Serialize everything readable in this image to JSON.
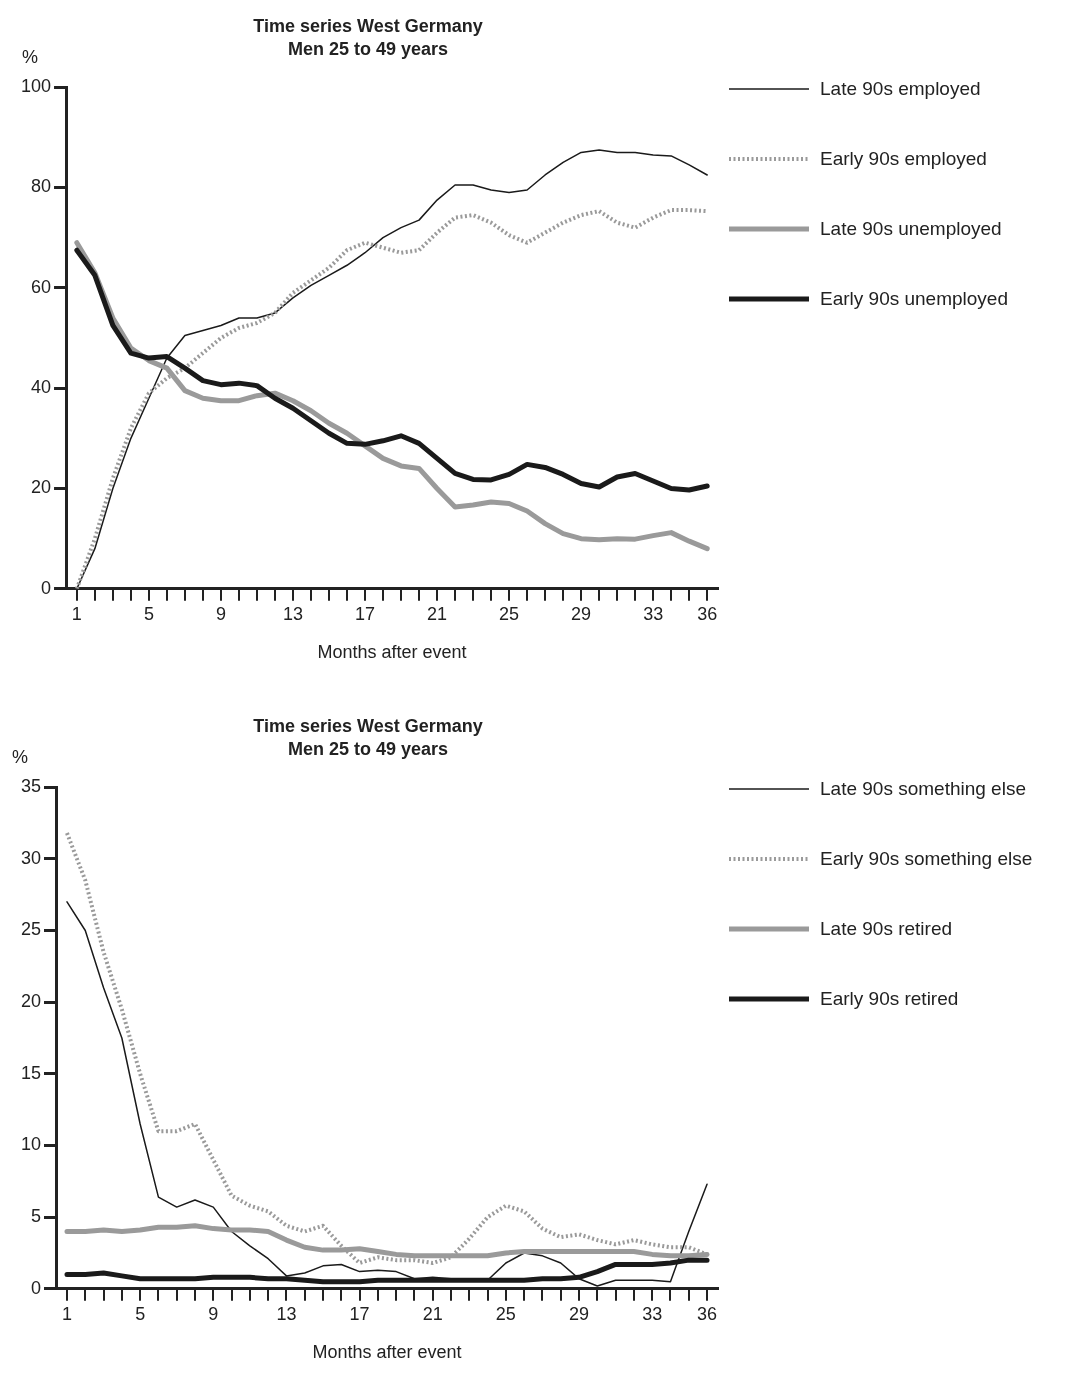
{
  "chart_data": [
    {
      "type": "line",
      "title": "Time series West Germany",
      "subtitle": "Men 25 to 49 years",
      "xlabel": "Months after event",
      "ylabel": "%",
      "legend": "right",
      "grid": false,
      "marker": "none",
      "x": [
        1,
        2,
        3,
        4,
        5,
        6,
        7,
        8,
        9,
        10,
        11,
        12,
        13,
        14,
        15,
        16,
        17,
        18,
        19,
        20,
        21,
        22,
        23,
        24,
        25,
        26,
        27,
        28,
        29,
        30,
        31,
        32,
        33,
        34,
        35,
        36
      ],
      "xlim": [
        0.4,
        36.6
      ],
      "xticks": [
        1,
        {
          "value": 2,
          "label": null
        },
        {
          "value": 3,
          "label": null
        },
        {
          "value": 4,
          "label": null
        },
        5,
        {
          "value": 6,
          "label": null
        },
        {
          "value": 7,
          "label": null
        },
        {
          "value": 8,
          "label": null
        },
        9,
        {
          "value": 10,
          "label": null
        },
        {
          "value": 11,
          "label": null
        },
        {
          "value": 12,
          "label": null
        },
        13,
        {
          "value": 14,
          "label": null
        },
        {
          "value": 15,
          "label": null
        },
        {
          "value": 16,
          "label": null
        },
        17,
        {
          "value": 18,
          "label": null
        },
        {
          "value": 19,
          "label": null
        },
        {
          "value": 20,
          "label": null
        },
        21,
        {
          "value": 22,
          "label": null
        },
        {
          "value": 23,
          "label": null
        },
        {
          "value": 24,
          "label": null
        },
        25,
        {
          "value": 26,
          "label": null
        },
        {
          "value": 27,
          "label": null
        },
        {
          "value": 28,
          "label": null
        },
        29,
        {
          "value": 30,
          "label": null
        },
        {
          "value": 31,
          "label": null
        },
        {
          "value": 32,
          "label": null
        },
        33,
        {
          "value": 34,
          "label": null
        },
        {
          "value": 35,
          "label": null
        },
        36
      ],
      "ylim": [
        0,
        100
      ],
      "yticks": [
        0,
        20,
        40,
        60,
        80,
        100
      ],
      "series": [
        {
          "name": "Late 90s employed",
          "color": "#1a1a1a",
          "line_style": "solid",
          "values": [
            0,
            8,
            20,
            30,
            38,
            46,
            50.5,
            51.5,
            52.5,
            54,
            54,
            55,
            58,
            60.5,
            62.5,
            64.5,
            67,
            70,
            72,
            73.5,
            77.5,
            80.5,
            80.5,
            79.5,
            79,
            79.5,
            82.5,
            85,
            87,
            87.5,
            87,
            87,
            86.5,
            86.3,
            84.5,
            82.5
          ]
        },
        {
          "name": "Early 90s employed",
          "color": "#9a9a9a",
          "line_style": "dotted",
          "values": [
            0,
            10,
            22,
            32,
            39,
            42,
            44,
            47,
            50,
            52,
            53,
            55,
            59,
            61.5,
            64,
            67.5,
            69,
            68,
            67,
            67.5,
            71,
            74,
            74.5,
            73,
            70.5,
            69,
            71,
            73,
            74.5,
            75.3,
            73,
            72,
            74,
            75.5,
            75.5,
            75.3
          ]
        },
        {
          "name": "Late 90s unemployed",
          "color": "#9a9a9a",
          "line_style": "solid",
          "values": [
            69,
            63,
            54,
            48,
            45.5,
            44,
            39.5,
            38,
            37.5,
            37.5,
            38.5,
            39,
            37.5,
            35.5,
            33,
            31,
            28.5,
            26,
            24.5,
            24,
            20,
            16.3,
            16.7,
            17.3,
            17,
            15.5,
            13,
            11,
            10,
            9.8,
            10,
            9.9,
            10.6,
            11.2,
            9.5,
            8
          ]
        },
        {
          "name": "Early 90s unemployed",
          "color": "#1a1a1a",
          "line_style": "solid",
          "values": [
            67.5,
            62.5,
            52.5,
            47,
            46,
            46.3,
            44,
            41.5,
            40.7,
            41,
            40.5,
            38,
            36,
            33.5,
            31,
            29,
            28.8,
            29.5,
            30.5,
            29,
            26,
            23,
            21.8,
            21.7,
            22.8,
            24.8,
            24.2,
            22.8,
            21,
            20.3,
            22.3,
            23,
            21.5,
            20,
            19.7,
            20.5
          ]
        }
      ]
    },
    {
      "type": "line",
      "title": "Time series West Germany",
      "subtitle": "Men 25 to 49 years",
      "xlabel": "Months after event",
      "ylabel": "%",
      "legend": "right",
      "grid": false,
      "marker": "none",
      "x": [
        1,
        2,
        3,
        4,
        5,
        6,
        7,
        8,
        9,
        10,
        11,
        12,
        13,
        14,
        15,
        16,
        17,
        18,
        19,
        20,
        21,
        22,
        23,
        24,
        25,
        26,
        27,
        28,
        29,
        30,
        31,
        32,
        33,
        34,
        35,
        36
      ],
      "xlim": [
        0.4,
        36.6
      ],
      "xticks": [
        1,
        {
          "value": 2,
          "label": null
        },
        {
          "value": 3,
          "label": null
        },
        {
          "value": 4,
          "label": null
        },
        5,
        {
          "value": 6,
          "label": null
        },
        {
          "value": 7,
          "label": null
        },
        {
          "value": 8,
          "label": null
        },
        9,
        {
          "value": 10,
          "label": null
        },
        {
          "value": 11,
          "label": null
        },
        {
          "value": 12,
          "label": null
        },
        13,
        {
          "value": 14,
          "label": null
        },
        {
          "value": 15,
          "label": null
        },
        {
          "value": 16,
          "label": null
        },
        17,
        {
          "value": 18,
          "label": null
        },
        {
          "value": 19,
          "label": null
        },
        {
          "value": 20,
          "label": null
        },
        21,
        {
          "value": 22,
          "label": null
        },
        {
          "value": 23,
          "label": null
        },
        {
          "value": 24,
          "label": null
        },
        25,
        {
          "value": 26,
          "label": null
        },
        {
          "value": 27,
          "label": null
        },
        {
          "value": 28,
          "label": null
        },
        29,
        {
          "value": 30,
          "label": null
        },
        {
          "value": 31,
          "label": null
        },
        {
          "value": 32,
          "label": null
        },
        33,
        {
          "value": 34,
          "label": null
        },
        {
          "value": 35,
          "label": null
        },
        36
      ],
      "ylim": [
        0,
        35
      ],
      "yticks": [
        0,
        5,
        10,
        15,
        20,
        25,
        30,
        35
      ],
      "series": [
        {
          "name": "Late 90s something else",
          "color": "#1a1a1a",
          "line_style": "solid",
          "values": [
            27,
            25,
            21,
            17.5,
            11.5,
            6.4,
            5.7,
            6.2,
            5.7,
            4,
            3,
            2.1,
            0.9,
            1.1,
            1.6,
            1.7,
            1.2,
            1.3,
            1.2,
            0.7,
            0.8,
            0.7,
            0.6,
            0.6,
            1.8,
            2.5,
            2.3,
            1.8,
            0.7,
            0.2,
            0.6,
            0.6,
            0.6,
            0.5,
            4,
            7.3
          ]
        },
        {
          "name": "Early 90s something else",
          "color": "#9a9a9a",
          "line_style": "dotted",
          "values": [
            31.8,
            28.5,
            23.5,
            19.5,
            15,
            11,
            11,
            11.5,
            9,
            6.5,
            5.8,
            5.4,
            4.4,
            4,
            4.4,
            3,
            1.8,
            2.2,
            2,
            2,
            1.8,
            2.2,
            3.5,
            5,
            5.8,
            5.4,
            4.2,
            3.6,
            3.8,
            3.4,
            3.1,
            3.4,
            3.1,
            2.9,
            2.9,
            2.4
          ]
        },
        {
          "name": "Late 90s retired",
          "color": "#9a9a9a",
          "line_style": "solid",
          "values": [
            4,
            4,
            4.1,
            4,
            4.1,
            4.3,
            4.3,
            4.4,
            4.2,
            4.1,
            4.1,
            4,
            3.4,
            2.9,
            2.7,
            2.7,
            2.8,
            2.6,
            2.4,
            2.3,
            2.3,
            2.3,
            2.3,
            2.3,
            2.5,
            2.6,
            2.6,
            2.6,
            2.6,
            2.6,
            2.6,
            2.6,
            2.4,
            2.3,
            2.3,
            2.4
          ]
        },
        {
          "name": "Early 90s retired",
          "color": "#1a1a1a",
          "line_style": "solid",
          "values": [
            1,
            1,
            1.1,
            0.9,
            0.7,
            0.7,
            0.7,
            0.7,
            0.8,
            0.8,
            0.8,
            0.7,
            0.7,
            0.6,
            0.5,
            0.5,
            0.5,
            0.6,
            0.6,
            0.6,
            0.6,
            0.6,
            0.6,
            0.6,
            0.6,
            0.6,
            0.7,
            0.7,
            0.8,
            1.2,
            1.7,
            1.7,
            1.7,
            1.8,
            2,
            2
          ]
        }
      ]
    }
  ]
}
